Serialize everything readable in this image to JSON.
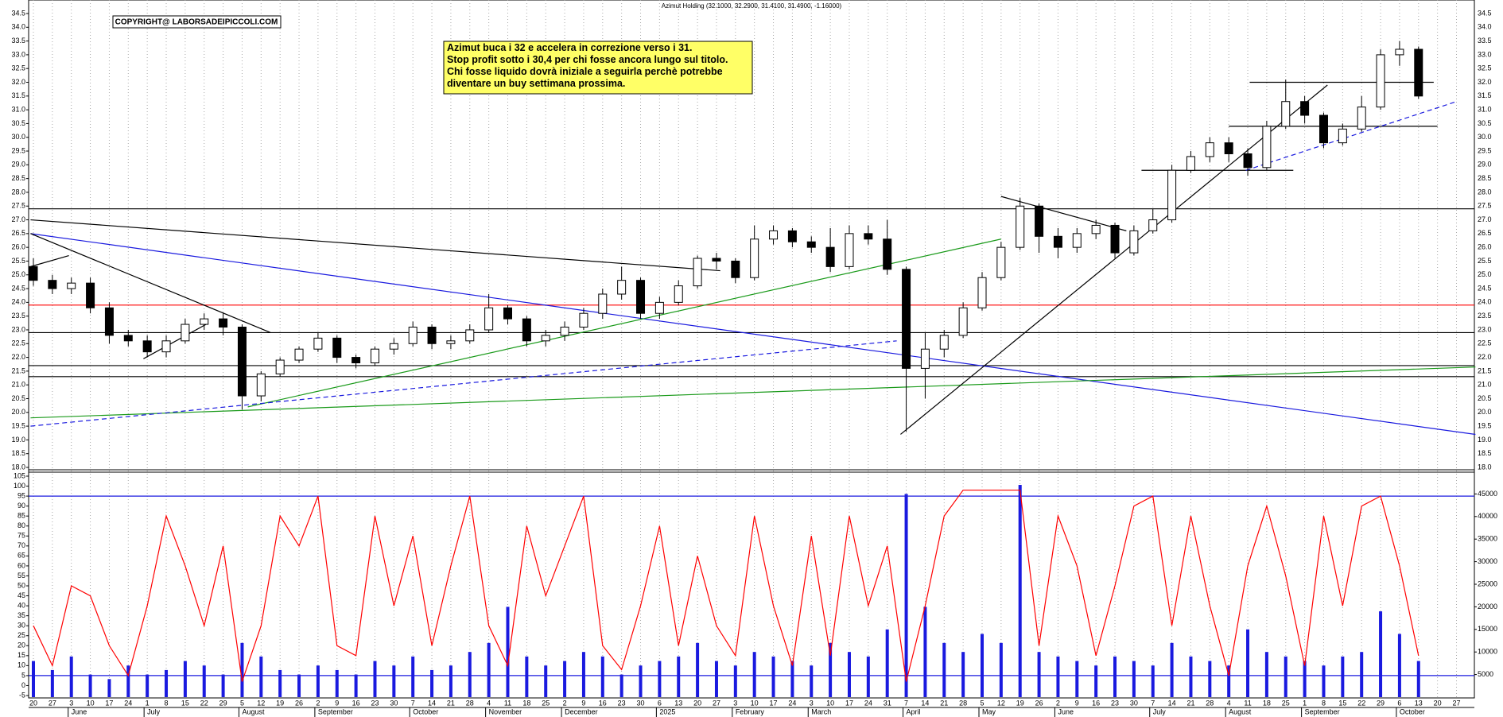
{
  "chart_data": [
    {
      "type": "candlestick",
      "title": "Azimut Holding (32.1000, 32.2900, 31.4100, 31.4900, -1.16000)",
      "copyright": "COPYRIGHT@ LABORSADEIPICCOLI.COM",
      "annotation": [
        "Azimut buca i 32 e accelera in correzione verso i 31.",
        "Stop profit sotto i 30,4 per chi fosse ancora lungo sul titolo.",
        "Chi fosse liquido dovrà iniziale a seguirla perchè potrebbe",
        "diventare un buy settimana prossima."
      ],
      "categories": [
        "20",
        "27",
        "3",
        "10",
        "17",
        "24",
        "1",
        "8",
        "15",
        "22",
        "29",
        "5",
        "12",
        "19",
        "26",
        "2",
        "9",
        "16",
        "23",
        "30",
        "7",
        "14",
        "21",
        "28",
        "4",
        "11",
        "18",
        "25",
        "2",
        "9",
        "16",
        "23",
        "30",
        "6",
        "13",
        "20",
        "27",
        "3",
        "10",
        "17",
        "24",
        "3",
        "10",
        "17",
        "24",
        "31",
        "7",
        "14",
        "21",
        "28",
        "5",
        "12",
        "19",
        "26",
        "2",
        "9",
        "16",
        "23",
        "30",
        "7",
        "14",
        "21",
        "28",
        "4",
        "11",
        "18",
        "25",
        "1",
        "8",
        "15",
        "22",
        "29",
        "6",
        "13",
        "20",
        "27"
      ],
      "month_labels": [
        {
          "label": "June",
          "start": 2
        },
        {
          "label": "July",
          "start": 6
        },
        {
          "label": "August",
          "start": 11
        },
        {
          "label": "September",
          "start": 15
        },
        {
          "label": "October",
          "start": 20
        },
        {
          "label": "November",
          "start": 24
        },
        {
          "label": "December",
          "start": 28
        },
        {
          "label": "2025",
          "start": 33
        },
        {
          "label": "February",
          "start": 37
        },
        {
          "label": "March",
          "start": 41
        },
        {
          "label": "April",
          "start": 46
        },
        {
          "label": "May",
          "start": 50
        },
        {
          "label": "June",
          "start": 54
        },
        {
          "label": "July",
          "start": 59
        },
        {
          "label": "August",
          "start": 63
        },
        {
          "label": "September",
          "start": 67
        },
        {
          "label": "October",
          "start": 72
        }
      ],
      "open": [
        25.3,
        24.8,
        24.5,
        24.7,
        23.8,
        22.8,
        22.6,
        22.2,
        22.6,
        23.2,
        23.4,
        23.1,
        20.6,
        21.4,
        21.9,
        22.3,
        22.7,
        22.0,
        21.8,
        22.3,
        22.5,
        23.1,
        22.5,
        22.6,
        23.0,
        23.8,
        23.4,
        22.6,
        22.8,
        23.1,
        23.6,
        24.3,
        24.8,
        23.6,
        24.0,
        24.6,
        25.6,
        25.5,
        24.9,
        26.3,
        26.6,
        26.2,
        26.0,
        25.3,
        26.5,
        26.3,
        25.2,
        21.6,
        22.3,
        22.8,
        23.8,
        24.9,
        26.0,
        27.5,
        26.4,
        26.0,
        26.5,
        26.8,
        25.8,
        26.6,
        27.0,
        28.8,
        29.3,
        29.8,
        29.4,
        28.9,
        30.4,
        31.3,
        30.8,
        29.8,
        30.3,
        31.1,
        33.0,
        33.2,
        null,
        null
      ],
      "high": [
        25.6,
        25.0,
        24.9,
        24.9,
        24.0,
        23.0,
        22.8,
        22.8,
        23.4,
        23.6,
        23.6,
        23.2,
        21.5,
        22.0,
        22.4,
        22.9,
        22.8,
        22.1,
        22.4,
        22.7,
        23.3,
        23.2,
        22.8,
        23.2,
        24.3,
        23.9,
        23.5,
        23.0,
        23.3,
        23.8,
        24.5,
        25.3,
        24.9,
        24.2,
        24.8,
        25.7,
        25.8,
        25.6,
        26.8,
        26.8,
        26.7,
        26.4,
        26.7,
        26.8,
        26.8,
        27.0,
        25.3,
        22.9,
        23.0,
        24.0,
        25.1,
        26.2,
        27.8,
        27.6,
        26.7,
        26.7,
        27.0,
        26.9,
        26.8,
        27.4,
        29.0,
        29.5,
        30.0,
        30.0,
        29.6,
        30.6,
        32.1,
        31.5,
        30.9,
        30.5,
        31.5,
        33.2,
        33.5,
        33.3,
        null,
        null
      ],
      "low": [
        24.6,
        24.3,
        24.3,
        23.6,
        22.5,
        22.4,
        22.0,
        22.0,
        22.5,
        23.0,
        22.8,
        20.1,
        20.4,
        21.3,
        21.8,
        22.2,
        21.8,
        21.6,
        21.7,
        22.1,
        22.4,
        22.3,
        22.3,
        22.5,
        22.9,
        23.2,
        22.4,
        22.4,
        22.6,
        23.0,
        23.4,
        24.1,
        23.4,
        23.4,
        23.9,
        24.5,
        25.2,
        24.7,
        24.8,
        26.1,
        26.0,
        25.8,
        25.1,
        25.2,
        26.1,
        25.0,
        19.3,
        20.5,
        22.0,
        22.7,
        23.7,
        24.8,
        25.9,
        25.8,
        25.6,
        25.8,
        26.3,
        25.6,
        25.7,
        26.5,
        26.9,
        28.7,
        29.1,
        29.1,
        28.6,
        28.8,
        30.3,
        30.5,
        29.6,
        29.7,
        30.2,
        31.0,
        32.6,
        31.4,
        null,
        null
      ],
      "close": [
        24.8,
        24.5,
        24.7,
        23.8,
        22.8,
        22.6,
        22.2,
        22.6,
        23.2,
        23.4,
        23.1,
        20.6,
        21.4,
        21.9,
        22.3,
        22.7,
        22.0,
        21.8,
        22.3,
        22.5,
        23.1,
        22.5,
        22.6,
        23.0,
        23.8,
        23.4,
        22.6,
        22.8,
        23.1,
        23.6,
        24.3,
        24.8,
        23.6,
        24.0,
        24.6,
        25.6,
        25.5,
        24.9,
        26.3,
        26.6,
        26.2,
        26.0,
        25.3,
        26.5,
        26.3,
        25.2,
        21.6,
        22.3,
        22.8,
        23.8,
        24.9,
        26.0,
        27.5,
        26.4,
        26.0,
        26.5,
        26.8,
        25.8,
        26.6,
        27.0,
        28.8,
        29.3,
        29.8,
        29.4,
        28.9,
        30.4,
        31.3,
        30.8,
        29.8,
        30.3,
        31.1,
        33.0,
        33.2,
        31.5,
        null,
        null
      ],
      "ylim": [
        18.0,
        34.5
      ],
      "yticks": [
        {
          "value": 18.0,
          "label": "18.0"
        },
        {
          "value": 18.5,
          "label": "18.5"
        },
        {
          "value": 19.0,
          "label": "19.0"
        },
        {
          "value": 19.5,
          "label": "19.5"
        },
        {
          "value": 20.0,
          "label": "20.0"
        },
        {
          "value": 20.5,
          "label": "20.5"
        },
        {
          "value": 21.0,
          "label": "21.0"
        },
        {
          "value": 21.5,
          "label": "21.5"
        },
        {
          "value": 22.0,
          "label": "22.0"
        },
        {
          "value": 22.5,
          "label": "22.5"
        },
        {
          "value": 23.0,
          "label": "23.0"
        },
        {
          "value": 23.5,
          "label": "23.5"
        },
        {
          "value": 24.0,
          "label": "24.0"
        },
        {
          "value": 24.5,
          "label": "24.5"
        },
        {
          "value": 25.0,
          "label": "25.0"
        },
        {
          "value": 25.5,
          "label": "25.5"
        },
        {
          "value": 26.0,
          "label": "26.0"
        },
        {
          "value": 26.5,
          "label": "26.5"
        },
        {
          "value": 27.0,
          "label": "27.0"
        },
        {
          "value": 27.5,
          "label": "27.5"
        },
        {
          "value": 28.0,
          "label": "28.0"
        },
        {
          "value": 28.5,
          "label": "28.5"
        },
        {
          "value": 29.0,
          "label": "29.0"
        },
        {
          "value": 29.5,
          "label": "29.5"
        },
        {
          "value": 30.0,
          "label": "30.0"
        },
        {
          "value": 30.5,
          "label": "30.5"
        },
        {
          "value": 31.0,
          "label": "31.0"
        },
        {
          "value": 31.5,
          "label": "31.5"
        },
        {
          "value": 32.0,
          "label": "32.0"
        },
        {
          "value": 32.5,
          "label": "32.5"
        },
        {
          "value": 33.0,
          "label": "33.0"
        },
        {
          "value": 33.5,
          "label": "33.5"
        },
        {
          "value": 34.0,
          "label": "34.0"
        },
        {
          "value": 34.5,
          "label": "34.5"
        }
      ],
      "hlines": [
        {
          "value": 27.4,
          "color": "#000000",
          "from": -0.3,
          "to": 76
        },
        {
          "value": 23.9,
          "color": "#ff0000",
          "from": -0.3,
          "to": 76
        },
        {
          "value": 22.9,
          "color": "#000000",
          "from": -0.3,
          "to": 76
        },
        {
          "value": 21.7,
          "color": "#000000",
          "from": -0.3,
          "to": 76
        },
        {
          "value": 21.3,
          "color": "#000000",
          "from": -0.3,
          "to": 76
        },
        {
          "value": 32.0,
          "color": "#000000",
          "from": 64.1,
          "to": 73.8
        },
        {
          "value": 30.4,
          "color": "#000000",
          "from": 63,
          "to": 74
        },
        {
          "value": 28.8,
          "color": "#000000",
          "from": 58.4,
          "to": 66.4
        }
      ],
      "trendlines": [
        {
          "points": [
            [
              -0.15,
              27.0
            ],
            [
              36.2,
              25.15
            ]
          ],
          "color": "#000000",
          "dash": false
        },
        {
          "points": [
            [
              -0.15,
              26.5
            ],
            [
              76,
              19.2
            ]
          ],
          "color": "#1a1adf",
          "dash": false
        },
        {
          "points": [
            [
              -0.15,
              26.5
            ],
            [
              12.5,
              22.9
            ]
          ],
          "color": "#000000",
          "dash": false
        },
        {
          "points": [
            [
              -0.15,
              25.3
            ],
            [
              1.87,
              25.7
            ]
          ],
          "color": "#000000",
          "dash": false
        },
        {
          "points": [
            [
              5.8,
              21.95
            ],
            [
              9.1,
              23.2
            ]
          ],
          "color": "#000000",
          "dash": false
        },
        {
          "points": [
            [
              -0.15,
              19.8
            ],
            [
              76,
              21.65
            ]
          ],
          "color": "#1a9a1a",
          "dash": false
        },
        {
          "points": [
            [
              11.3,
              20.2
            ],
            [
              51.0,
              26.3
            ]
          ],
          "color": "#1a9a1a",
          "dash": false
        },
        {
          "points": [
            [
              -0.15,
              19.5
            ],
            [
              45.5,
              22.6
            ]
          ],
          "color": "#1a1adf",
          "dash": true
        },
        {
          "points": [
            [
              45.7,
              19.2
            ],
            [
              68.2,
              31.9
            ]
          ],
          "color": "#000000",
          "dash": false
        },
        {
          "points": [
            [
              51.0,
              27.85
            ],
            [
              57.6,
              26.6
            ]
          ],
          "color": "#000000",
          "dash": false
        },
        {
          "points": [
            [
              63.9,
              28.8
            ],
            [
              75.0,
              31.3
            ]
          ],
          "color": "#1a1adf",
          "dash": true
        }
      ],
      "up_color": "#ffffff",
      "down_color": "#000000"
    },
    {
      "type": "oscillator",
      "values": [
        30,
        10,
        50,
        45,
        20,
        5,
        40,
        85,
        60,
        30,
        70,
        2,
        30,
        85,
        70,
        95,
        20,
        15,
        85,
        40,
        75,
        20,
        60,
        95,
        30,
        10,
        80,
        45,
        70,
        95,
        20,
        8,
        40,
        80,
        20,
        65,
        30,
        15,
        85,
        40,
        10,
        75,
        15,
        85,
        40,
        70,
        2,
        40,
        85,
        98,
        98,
        98,
        98,
        20,
        85,
        60,
        15,
        50,
        90,
        95,
        30,
        85,
        40,
        5,
        60,
        90,
        55,
        10,
        85,
        40,
        90,
        95,
        60,
        15,
        null,
        null
      ],
      "color": "#ff0000",
      "levels": [
        95,
        5
      ],
      "level_color": "#1a1adf",
      "ylim": [
        -5,
        105
      ],
      "yticks": [
        -5,
        0,
        5,
        10,
        15,
        20,
        25,
        30,
        35,
        40,
        45,
        50,
        55,
        60,
        65,
        70,
        75,
        80,
        85,
        90,
        95,
        100,
        105
      ],
      "volume": [
        8000,
        6000,
        9000,
        5000,
        4000,
        7000,
        5000,
        6000,
        8000,
        7000,
        5000,
        12000,
        9000,
        6000,
        5000,
        7000,
        6000,
        5000,
        8000,
        7000,
        9000,
        6000,
        7000,
        10000,
        12000,
        20000,
        9000,
        7000,
        8000,
        10000,
        9000,
        5000,
        7000,
        8000,
        9000,
        12000,
        8000,
        7000,
        10000,
        9000,
        8000,
        7000,
        12000,
        10000,
        9000,
        15000,
        45000,
        20000,
        12000,
        10000,
        14000,
        12000,
        47000,
        10000,
        9000,
        8000,
        7000,
        9000,
        8000,
        7000,
        12000,
        9000,
        8000,
        7000,
        15000,
        10000,
        9000,
        8000,
        7000,
        9000,
        10000,
        19000,
        14000,
        8000,
        null,
        null
      ],
      "volume_color": "#1a1adf",
      "y2lim": [
        0,
        50000
      ],
      "y2ticks": [
        5000,
        10000,
        15000,
        20000,
        25000,
        30000,
        35000,
        40000,
        45000
      ]
    }
  ]
}
